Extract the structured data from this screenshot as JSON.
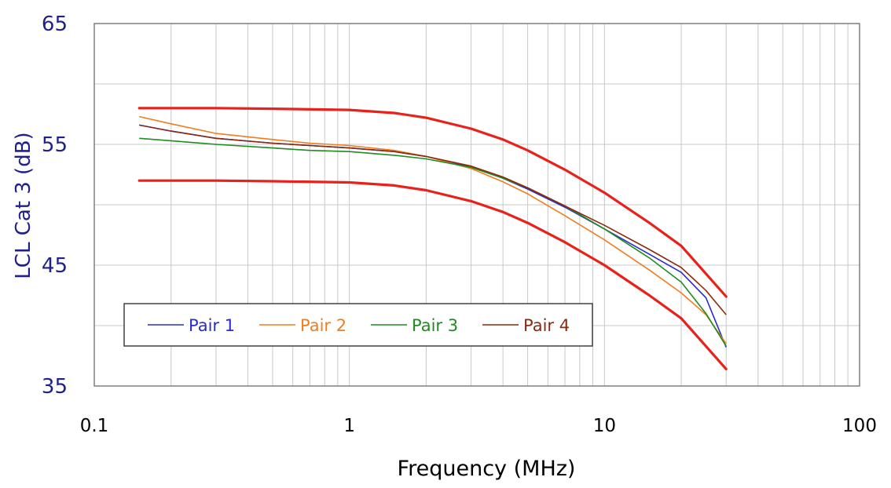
{
  "chart_data": {
    "type": "line",
    "xlabel": "Frequency (MHz)",
    "ylabel": "LCL Cat 3 (dB)",
    "x_scale": "log",
    "xlim": [
      0.1,
      100
    ],
    "ylim": [
      35,
      65
    ],
    "x_ticks": [
      0.1,
      1,
      10,
      100
    ],
    "x_tick_labels": [
      "0.1",
      "1",
      "10",
      "100"
    ],
    "y_ticks": [
      35,
      45,
      55,
      65
    ],
    "y_tick_labels": [
      "35",
      "45",
      "55",
      "65"
    ],
    "grid": true,
    "legend_position": "bottom-left",
    "limit_lines": [
      {
        "color": "#e8211b",
        "x": [
          0.15,
          0.3,
          0.5,
          1,
          1.5,
          2,
          3,
          4,
          5,
          7,
          10,
          15,
          20,
          30
        ],
        "values": [
          58.0,
          58.0,
          57.95,
          57.85,
          57.6,
          57.2,
          56.3,
          55.4,
          54.5,
          52.9,
          51.0,
          48.5,
          46.6,
          42.4
        ]
      },
      {
        "color": "#e8211b",
        "x": [
          0.15,
          0.3,
          0.5,
          1,
          1.5,
          2,
          3,
          4,
          5,
          7,
          10,
          15,
          20,
          30
        ],
        "values": [
          52.0,
          52.0,
          51.95,
          51.85,
          51.6,
          51.2,
          50.3,
          49.4,
          48.5,
          46.9,
          45.0,
          42.5,
          40.6,
          36.4
        ]
      }
    ],
    "series": [
      {
        "name": "Pair 1",
        "color": "#2b2bd0",
        "x": [
          0.15,
          0.2,
          0.3,
          0.5,
          0.7,
          1,
          1.5,
          2,
          3,
          4,
          5,
          7,
          10,
          15,
          20,
          25,
          30
        ],
        "values": [
          56.6,
          56.1,
          55.5,
          55.1,
          54.9,
          54.7,
          54.4,
          54.0,
          53.1,
          52.2,
          51.3,
          49.8,
          48.0,
          45.9,
          44.4,
          42.3,
          38.2
        ]
      },
      {
        "name": "Pair 2",
        "color": "#f07d1e",
        "x": [
          0.15,
          0.2,
          0.3,
          0.5,
          0.7,
          1,
          1.5,
          2,
          3,
          4,
          5,
          7,
          10,
          15,
          20,
          25,
          30
        ],
        "values": [
          57.3,
          56.7,
          55.9,
          55.4,
          55.1,
          54.9,
          54.5,
          54.0,
          53.0,
          51.9,
          50.9,
          49.1,
          47.1,
          44.6,
          42.7,
          40.9,
          38.5
        ]
      },
      {
        "name": "Pair 3",
        "color": "#1e8c1e",
        "x": [
          0.15,
          0.2,
          0.3,
          0.5,
          0.7,
          1,
          1.5,
          2,
          3,
          4,
          5,
          7,
          10,
          15,
          20,
          25,
          30
        ],
        "values": [
          55.5,
          55.3,
          55.0,
          54.7,
          54.5,
          54.4,
          54.1,
          53.8,
          53.1,
          52.2,
          51.4,
          49.9,
          48.0,
          45.6,
          43.6,
          41.0,
          38.3
        ]
      },
      {
        "name": "Pair 4",
        "color": "#8b2a0f",
        "x": [
          0.15,
          0.2,
          0.3,
          0.5,
          0.7,
          1,
          1.5,
          2,
          3,
          4,
          5,
          7,
          10,
          15,
          20,
          25,
          30
        ],
        "values": [
          56.6,
          56.1,
          55.5,
          55.1,
          54.9,
          54.7,
          54.4,
          54.0,
          53.2,
          52.3,
          51.4,
          49.9,
          48.3,
          46.3,
          44.8,
          42.9,
          40.9
        ]
      }
    ]
  }
}
